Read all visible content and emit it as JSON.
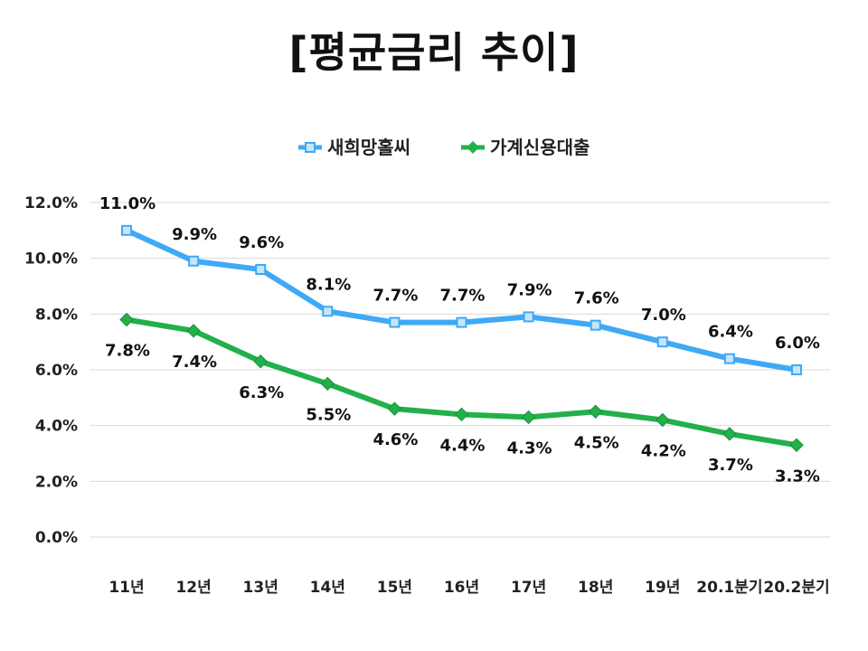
{
  "title": "[평균금리 추이]",
  "chart_data": {
    "type": "line",
    "categories": [
      "11년",
      "12년",
      "13년",
      "14년",
      "15년",
      "16년",
      "17년",
      "18년",
      "19년",
      "20.1분기",
      "20.2분기"
    ],
    "series": [
      {
        "name": "새희망홀씨",
        "color": "#3fa9f5",
        "marker": "square",
        "values": [
          11.0,
          9.9,
          9.6,
          8.1,
          7.7,
          7.7,
          7.9,
          7.6,
          7.0,
          6.4,
          6.0
        ],
        "labels": [
          "11.0%",
          "9.9%",
          "9.6%",
          "8.1%",
          "7.7%",
          "7.7%",
          "7.9%",
          "7.6%",
          "7.0%",
          "6.4%",
          "6.0%"
        ]
      },
      {
        "name": "가계신용대출",
        "color": "#22b04a",
        "marker": "diamond",
        "values": [
          7.8,
          7.4,
          6.3,
          5.5,
          4.6,
          4.4,
          4.3,
          4.5,
          4.2,
          3.7,
          3.3
        ],
        "labels": [
          "7.8%",
          "7.4%",
          "6.3%",
          "5.5%",
          "4.6%",
          "4.4%",
          "4.3%",
          "4.5%",
          "4.2%",
          "3.7%",
          "3.3%"
        ]
      }
    ],
    "ylim": [
      0,
      12
    ],
    "yticks": [
      "0.0%",
      "2.0%",
      "4.0%",
      "6.0%",
      "8.0%",
      "10.0%",
      "12.0%"
    ],
    "grid": true,
    "legend": "top-center"
  }
}
